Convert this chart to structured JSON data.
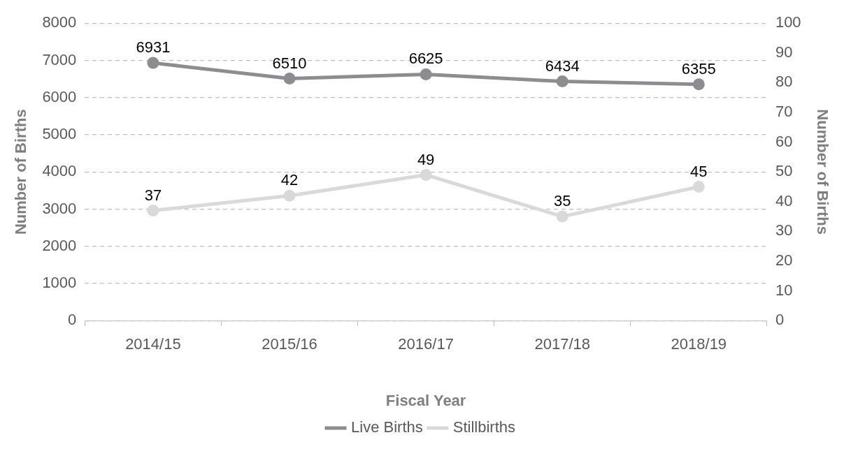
{
  "chart_data": {
    "type": "line",
    "xlabel": "Fiscal Year",
    "ylabel": "Number of Births",
    "y2label": "Number of Births",
    "categories": [
      "2014/15",
      "2015/16",
      "2016/17",
      "2017/18",
      "2018/19"
    ],
    "series": [
      {
        "name": "Live Births",
        "color": "#8c8c91",
        "values": [
          6931,
          6510,
          6625,
          6434,
          6355
        ]
      },
      {
        "name": "Stillbirths",
        "color": "#d9d9d9",
        "values": [
          37,
          42,
          49,
          35,
          45
        ],
        "axis": "y2"
      }
    ],
    "ylim": [
      0,
      8000
    ],
    "yticks": [
      0,
      1000,
      2000,
      3000,
      4000,
      5000,
      6000,
      7000,
      8000
    ],
    "y2lim": [
      0,
      100
    ],
    "y2ticks": [
      0,
      10,
      20,
      30,
      40,
      50,
      60,
      70,
      80,
      90,
      100
    ],
    "grid": "y",
    "legend": "bottom",
    "marker": "circle",
    "line_style": "solid",
    "data_labels": true
  }
}
